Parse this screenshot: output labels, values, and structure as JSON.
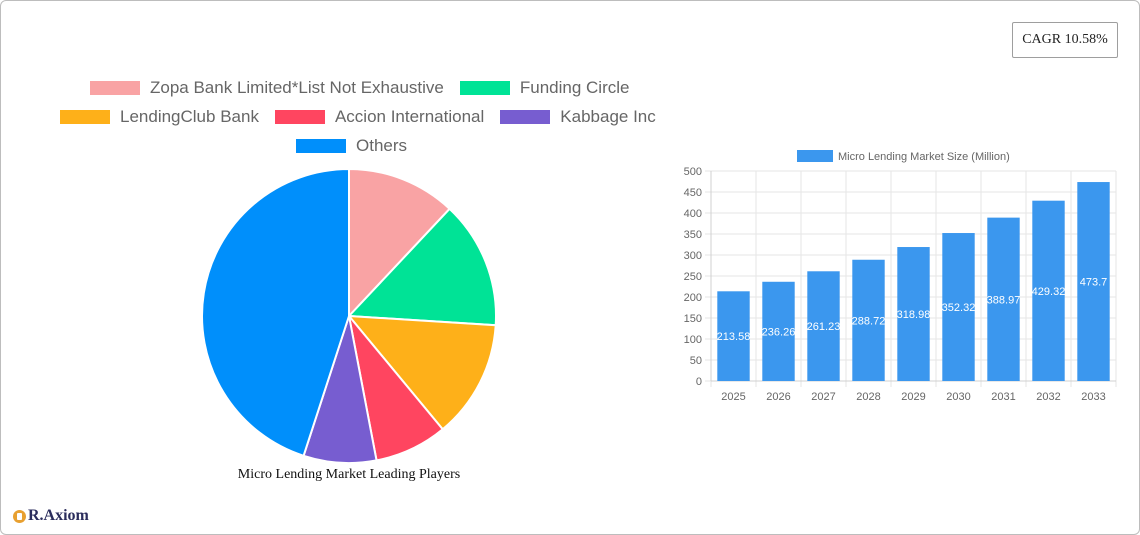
{
  "cagr_label": "CAGR 10.58%",
  "pie_title": "Micro Lending Market Leading Players",
  "logo_text": "R.Axiom",
  "chart_data": [
    {
      "type": "pie",
      "title": "Micro Lending Market Leading Players",
      "legend_position": "top",
      "slices": [
        {
          "label": "Zopa Bank Limited*List Not Exhaustive",
          "value": 12,
          "color": "#f9a3a4"
        },
        {
          "label": "Funding Circle",
          "value": 14,
          "color": "#00e396"
        },
        {
          "label": "LendingClub Bank",
          "value": 13,
          "color": "#feb019"
        },
        {
          "label": "Accion International",
          "value": 8,
          "color": "#ff4560"
        },
        {
          "label": "Kabbage Inc",
          "value": 8,
          "color": "#775dd0"
        },
        {
          "label": "Others",
          "value": 45,
          "color": "#008ffb"
        }
      ]
    },
    {
      "type": "bar",
      "legend_position": "top",
      "categories": [
        "2025",
        "2026",
        "2027",
        "2028",
        "2029",
        "2030",
        "2031",
        "2032",
        "2033"
      ],
      "series": [
        {
          "name": "Micro Lending Market  Size (Million)",
          "color": "#3b97ee",
          "values": [
            213.58,
            236.26,
            261.23,
            288.72,
            318.98,
            352.32,
            388.97,
            429.32,
            473.7
          ]
        }
      ],
      "ylim": [
        0,
        500
      ],
      "yticks": [
        0,
        50,
        100,
        150,
        200,
        250,
        300,
        350,
        400,
        450,
        500
      ],
      "grid": true
    }
  ]
}
